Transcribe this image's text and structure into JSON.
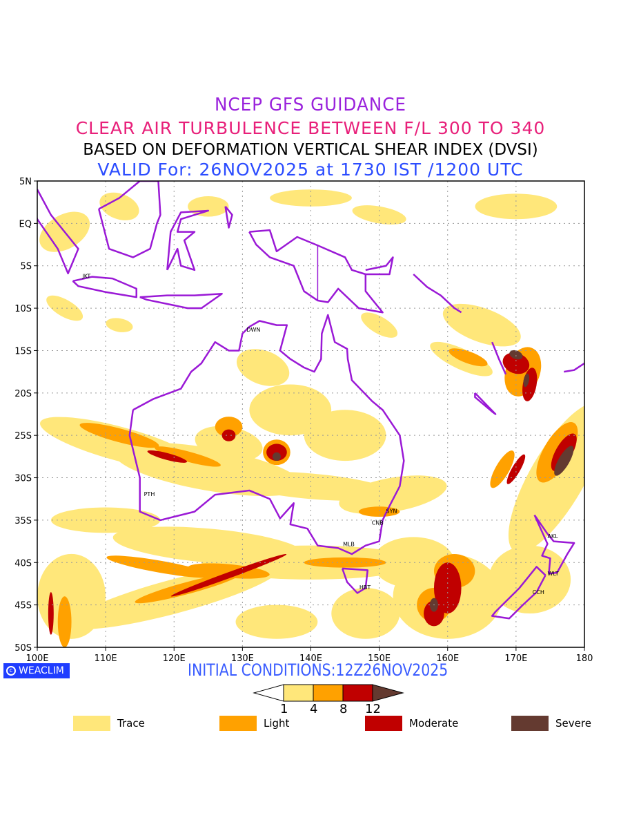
{
  "titles": {
    "line1": "NCEP GFS GUIDANCE",
    "line2": "CLEAR AIR TURBULENCE BETWEEN F/L 300 TO 340",
    "line3": "BASED ON DEFORMATION VERTICAL SHEAR INDEX (DVSI)",
    "line4": "VALID For: 26NOV2025 at 1730 IST /1200 UTC"
  },
  "map": {
    "lon_range": [
      100,
      180
    ],
    "lat_range": [
      -50,
      5
    ],
    "lat_labels": [
      "5N",
      "EQ",
      "5S",
      "10S",
      "15S",
      "20S",
      "25S",
      "30S",
      "35S",
      "40S",
      "45S",
      "50S"
    ],
    "lon_labels": [
      "100E",
      "110E",
      "120E",
      "130E",
      "140E",
      "150E",
      "160E",
      "170E",
      "180"
    ],
    "cities": [
      {
        "code": "JKT",
        "lon": 106.8,
        "lat": -6.2
      },
      {
        "code": "DWN",
        "lon": 130.8,
        "lat": -12.5
      },
      {
        "code": "PTH",
        "lon": 115.8,
        "lat": -31.9
      },
      {
        "code": "SYN",
        "lon": 151.2,
        "lat": -33.9
      },
      {
        "code": "CNB",
        "lon": 149.1,
        "lat": -35.3
      },
      {
        "code": "MLB",
        "lon": 144.9,
        "lat": -37.8
      },
      {
        "code": "HBT",
        "lon": 147.3,
        "lat": -42.9
      },
      {
        "code": "AKL",
        "lon": 174.8,
        "lat": -36.9
      },
      {
        "code": "WLT",
        "lon": 174.8,
        "lat": -41.3
      },
      {
        "code": "CCH",
        "lon": 172.6,
        "lat": -43.5
      }
    ],
    "coastline_color": "#9a19d6"
  },
  "footer": {
    "brand": "WEACLIM",
    "brand_icon": "copyright-icon",
    "initial_conditions": "INITIAL CONDITIONS:12Z26NOV2025"
  },
  "colorbar": {
    "thresholds": [
      "1",
      "4",
      "8",
      "12"
    ],
    "colors": [
      "#ffe77a",
      "#ffa100",
      "#c00000",
      "#643a30"
    ]
  },
  "legend": [
    {
      "label": "Trace",
      "color": "#ffe77a"
    },
    {
      "label": "Light",
      "color": "#ffa100"
    },
    {
      "label": "Moderate",
      "color": "#c00000"
    },
    {
      "label": "Severe",
      "color": "#643a30"
    }
  ]
}
